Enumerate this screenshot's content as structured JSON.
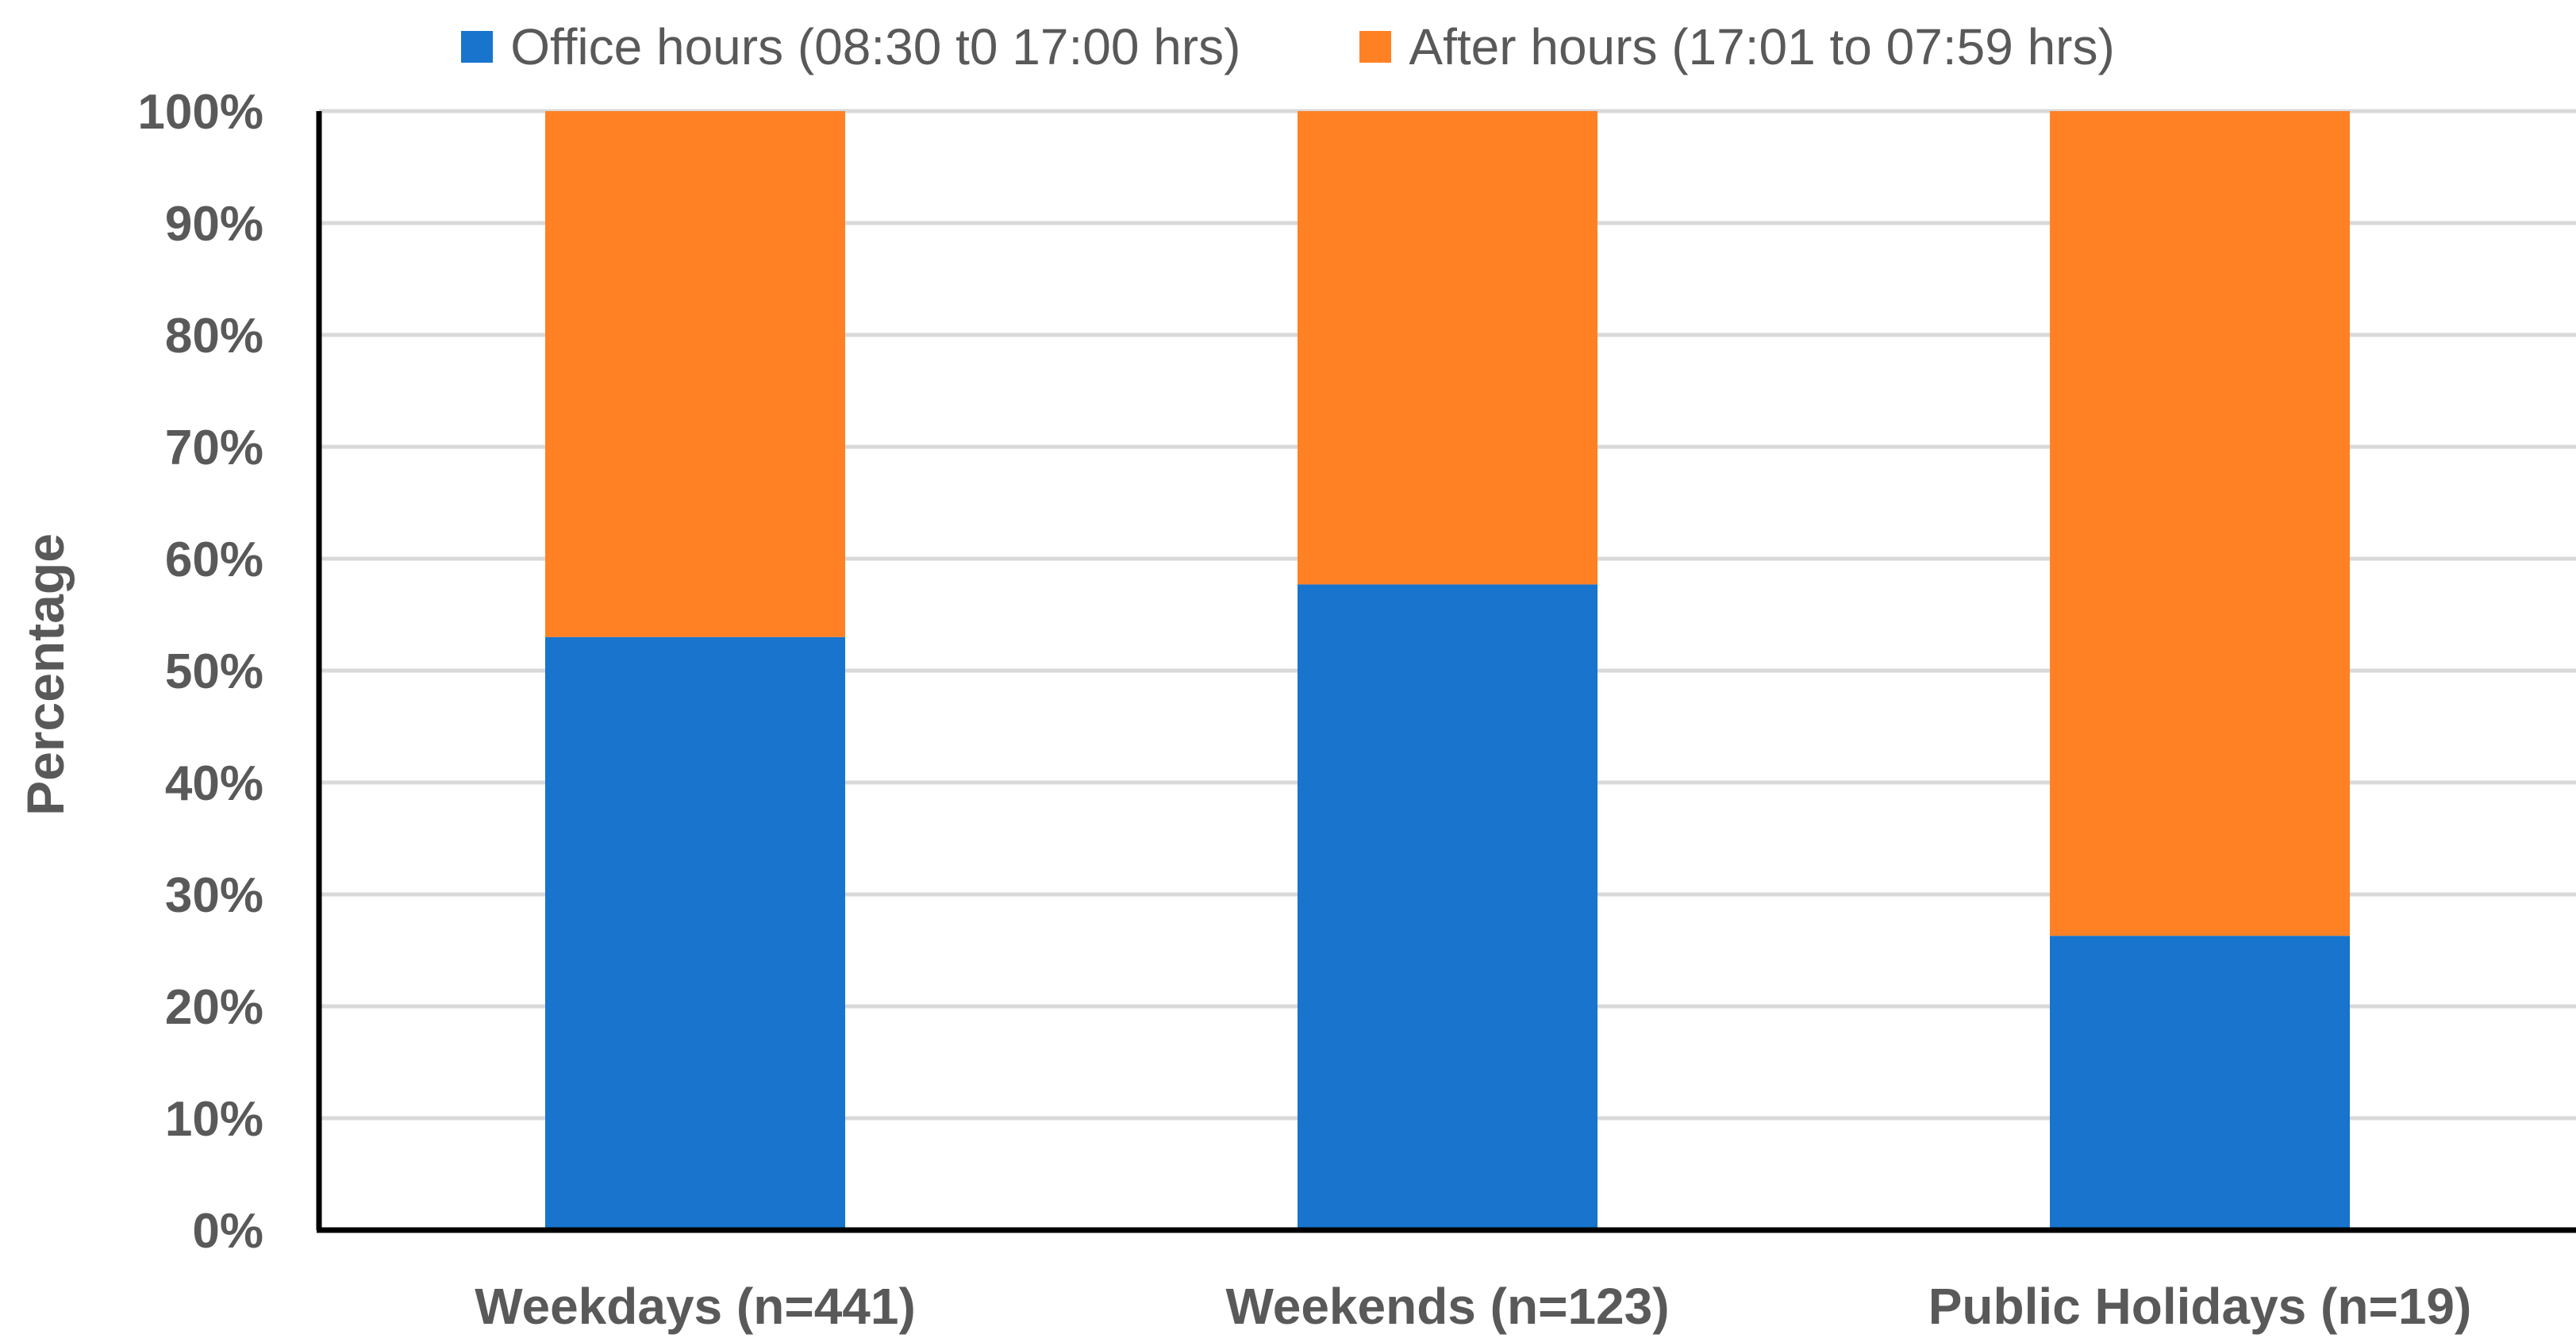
{
  "chart_data": {
    "type": "bar",
    "stacked": true,
    "title": "",
    "xlabel": "",
    "ylabel": "Percentage",
    "ylim": [
      0,
      100
    ],
    "yticks": [
      "0%",
      "10%",
      "20%",
      "30%",
      "40%",
      "50%",
      "60%",
      "70%",
      "80%",
      "90%",
      "100%"
    ],
    "categories": [
      "Weekdays (n=441)",
      "Weekends (n=123)",
      "Public Holidays (n=19)"
    ],
    "series": [
      {
        "name": "Office hours (08:30 t0 17:00 hrs)",
        "color": "#1874CD",
        "values": [
          53,
          57.7,
          26.3
        ]
      },
      {
        "name": "After hours (17:01 to 07:59 hrs)",
        "color": "#FF8124",
        "values": [
          47,
          42.3,
          73.7
        ]
      }
    ],
    "grid": true,
    "legend": "top-center"
  }
}
